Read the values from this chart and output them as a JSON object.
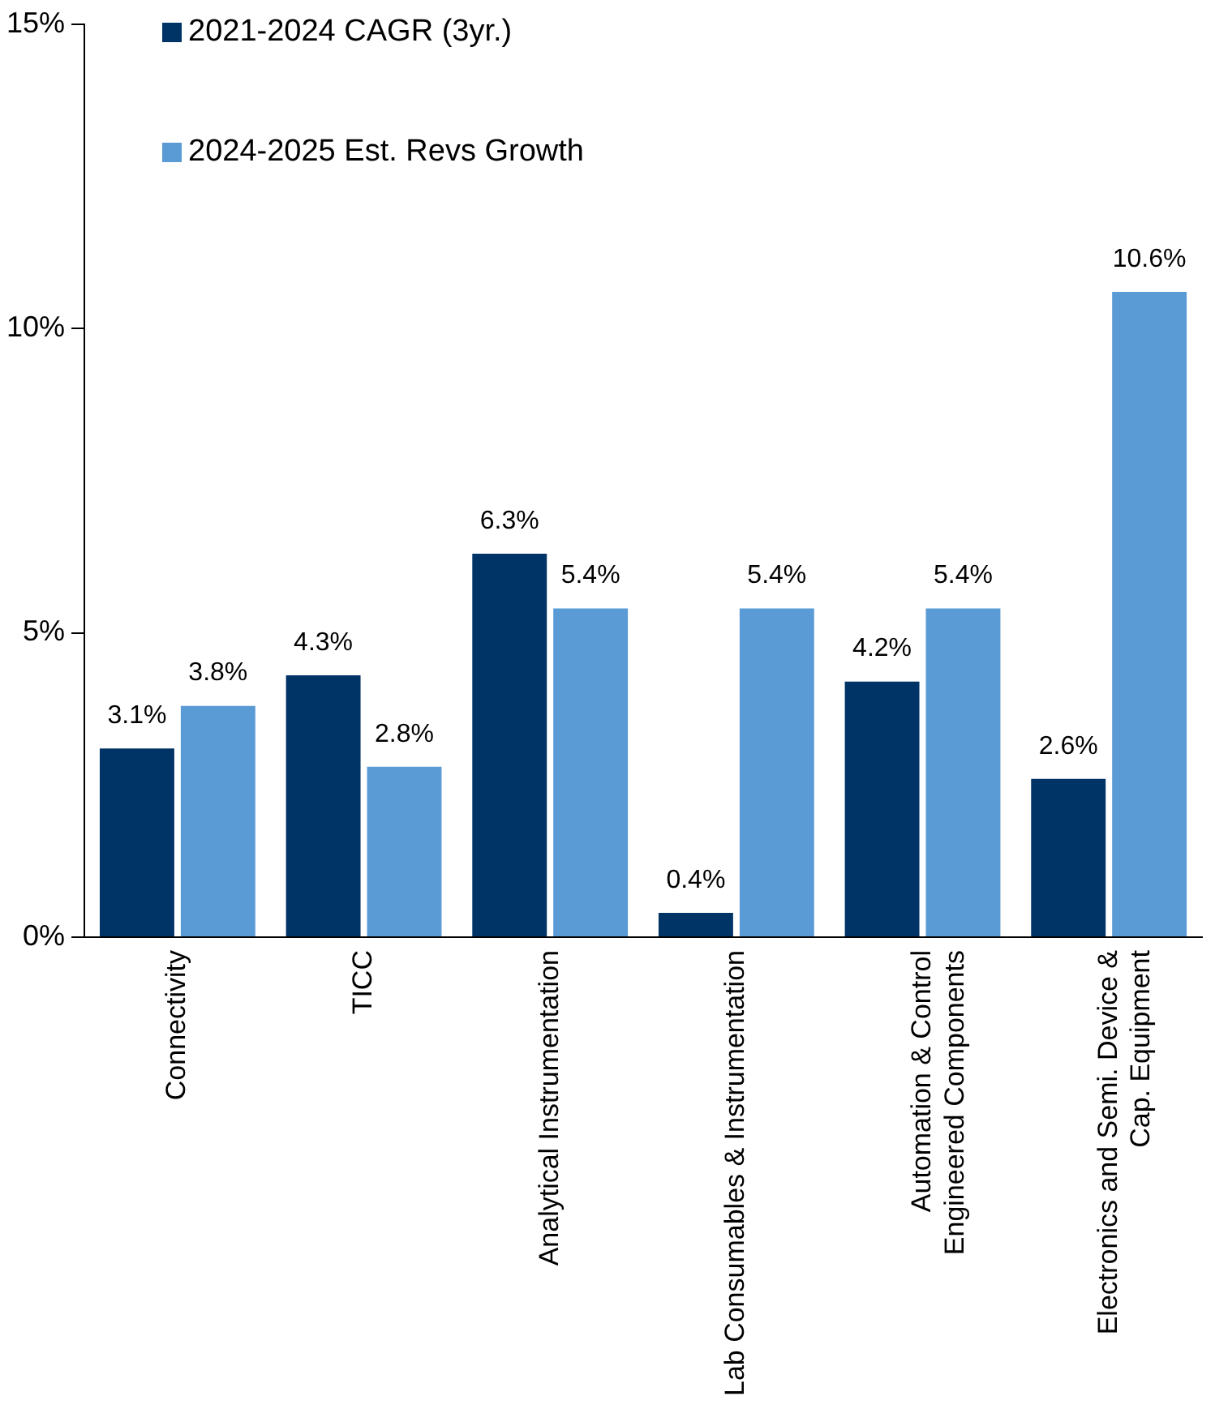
{
  "chart_data": {
    "type": "bar",
    "categories": [
      "Connectivity",
      "TICC",
      "Analytical Instrumentation",
      "Lab Consumables & Instrumentation",
      "Automation & Control\nEngineered Components",
      "Electronics and Semi. Device &\nCap. Equipment"
    ],
    "series": [
      {
        "name": "2021-2024 CAGR (3yr.)",
        "color": "#003366",
        "values": [
          3.1,
          4.3,
          6.3,
          0.4,
          4.2,
          2.6
        ],
        "value_labels": [
          "3.1%",
          "4.3%",
          "6.3%",
          "0.4%",
          "4.2%",
          "2.6%"
        ]
      },
      {
        "name": "2024-2025 Est. Revs Growth",
        "color": "#5b9bd5",
        "values": [
          3.8,
          2.8,
          5.4,
          5.4,
          5.4,
          10.6
        ],
        "value_labels": [
          "3.8%",
          "2.8%",
          "5.4%",
          "5.4%",
          "5.4%",
          "10.6%"
        ]
      }
    ],
    "ylim": [
      0,
      15
    ],
    "yticks": [
      {
        "value": 0,
        "label": "0%"
      },
      {
        "value": 5,
        "label": "5%"
      },
      {
        "value": 10,
        "label": "10%"
      },
      {
        "value": 15,
        "label": "15%"
      }
    ],
    "grid": false,
    "legend": "top left"
  }
}
